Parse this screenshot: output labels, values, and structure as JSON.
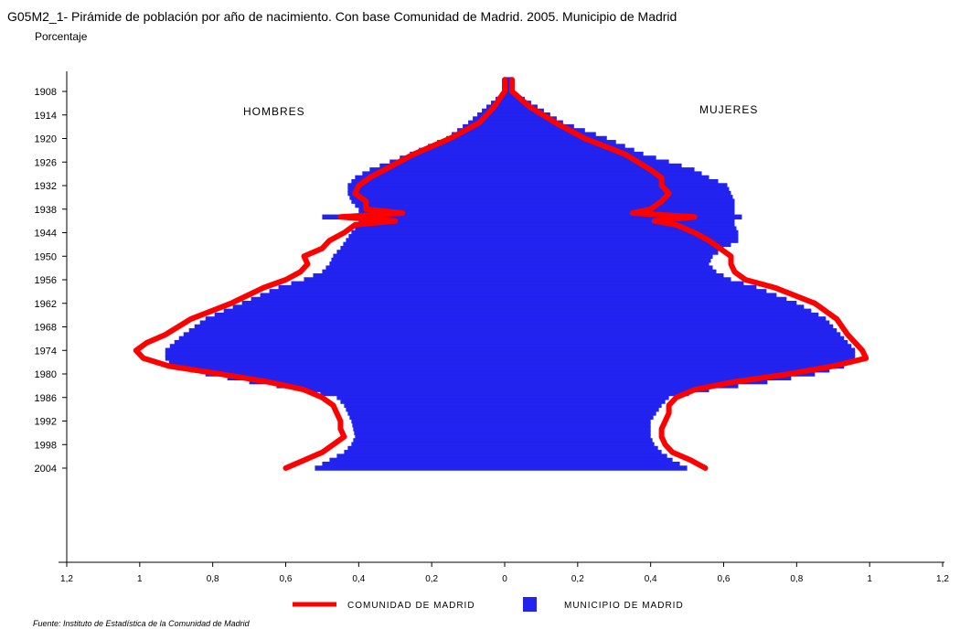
{
  "title": "G05M2_1- Pirámide de población por año de nacimiento. Con base Comunidad de Madrid.  2005. Municipio de Madrid",
  "subtitle": "Porcentaje",
  "source": "Fuente: Instituto de Estadística de la Comunidad de Madrid",
  "colors": {
    "municipio": "#2323f0",
    "comunidad": "#ff0000",
    "axis": "#000000"
  },
  "chart_data": {
    "type": "bar",
    "orientation": "horizontal",
    "subtype": "population-pyramid",
    "group_labels": {
      "left": "HOMBRES",
      "right": "MUJERES"
    },
    "ylim": [
      1905,
      2004
    ],
    "y_ticks": [
      1908,
      1914,
      1920,
      1926,
      1932,
      1938,
      1944,
      1950,
      1956,
      1962,
      1968,
      1974,
      1980,
      1986,
      1992,
      1998,
      2004
    ],
    "xlim": [
      -1.2,
      1.2
    ],
    "x_ticks": [
      -1.2,
      -1.0,
      -0.8,
      -0.6,
      -0.4,
      -0.2,
      0,
      0.2,
      0.4,
      0.6,
      0.8,
      1.0,
      1.2
    ],
    "x_tick_labels": [
      "1,2",
      "1",
      "0,8",
      "0,6",
      "0,4",
      "0,2",
      "0",
      "0,2",
      "0,4",
      "0,6",
      "0,8",
      "1",
      "1,2"
    ],
    "legend": {
      "position": "bottom",
      "entries": [
        "COMUNIDAD DE MADRID",
        "MUNICIPIO DE MADRID"
      ]
    },
    "grid": false,
    "series": [
      {
        "name": "MUNICIPIO DE MADRID",
        "kind": "bar",
        "hombres": {
          "years": [
            1905,
            1908,
            1912,
            1916,
            1918,
            1920,
            1924,
            1928,
            1930,
            1932,
            1934,
            1936,
            1938,
            1939,
            1940,
            1941,
            1942,
            1944,
            1948,
            1950,
            1952,
            1954,
            1956,
            1958,
            1962,
            1966,
            1970,
            1974,
            1976,
            1977,
            1978,
            1980,
            1982,
            1984,
            1986,
            1988,
            1992,
            1996,
            1998,
            2000,
            2002,
            2004
          ],
          "values": [
            0.0,
            0.0,
            0.05,
            0.1,
            0.13,
            0.16,
            0.26,
            0.37,
            0.41,
            0.43,
            0.43,
            0.42,
            0.4,
            0.4,
            0.5,
            0.4,
            0.4,
            0.42,
            0.45,
            0.47,
            0.48,
            0.5,
            0.55,
            0.62,
            0.72,
            0.82,
            0.88,
            0.93,
            0.93,
            0.92,
            0.9,
            0.82,
            0.7,
            0.55,
            0.46,
            0.44,
            0.42,
            0.41,
            0.42,
            0.44,
            0.48,
            0.52
          ]
        },
        "mujeres": {
          "years": [
            1905,
            1908,
            1912,
            1916,
            1918,
            1920,
            1924,
            1926,
            1928,
            1930,
            1932,
            1934,
            1936,
            1938,
            1939,
            1940,
            1941,
            1942,
            1944,
            1946,
            1948,
            1950,
            1952,
            1954,
            1956,
            1958,
            1962,
            1966,
            1970,
            1974,
            1976,
            1977,
            1978,
            1980,
            1982,
            1984,
            1986,
            1988,
            1992,
            1996,
            1998,
            2000,
            2002,
            2004
          ],
          "values": [
            0.02,
            0.02,
            0.09,
            0.16,
            0.22,
            0.28,
            0.38,
            0.45,
            0.52,
            0.56,
            0.61,
            0.62,
            0.63,
            0.63,
            0.63,
            0.65,
            0.63,
            0.63,
            0.64,
            0.64,
            0.6,
            0.57,
            0.56,
            0.58,
            0.62,
            0.69,
            0.8,
            0.88,
            0.92,
            0.96,
            0.96,
            0.95,
            0.93,
            0.85,
            0.72,
            0.56,
            0.45,
            0.43,
            0.4,
            0.4,
            0.41,
            0.43,
            0.46,
            0.5
          ]
        }
      },
      {
        "name": "COMUNIDAD DE MADRID",
        "kind": "line",
        "hombres": {
          "years": [
            1905,
            1908,
            1912,
            1916,
            1920,
            1924,
            1928,
            1930,
            1932,
            1934,
            1936,
            1938,
            1939,
            1940,
            1941,
            1942,
            1944,
            1946,
            1948,
            1950,
            1952,
            1954,
            1956,
            1958,
            1962,
            1966,
            1970,
            1972,
            1974,
            1976,
            1978,
            1980,
            1982,
            1984,
            1986,
            1988,
            1990,
            1992,
            1994,
            1996,
            1998,
            2000,
            2002,
            2004
          ],
          "values": [
            0.0,
            0.0,
            0.03,
            0.07,
            0.15,
            0.25,
            0.33,
            0.37,
            0.4,
            0.41,
            0.38,
            0.38,
            0.28,
            0.45,
            0.3,
            0.41,
            0.44,
            0.48,
            0.5,
            0.55,
            0.54,
            0.56,
            0.6,
            0.66,
            0.75,
            0.86,
            0.93,
            0.98,
            1.01,
            0.99,
            0.92,
            0.78,
            0.65,
            0.55,
            0.5,
            0.47,
            0.46,
            0.45,
            0.45,
            0.44,
            0.47,
            0.5,
            0.55,
            0.6
          ]
        },
        "mujeres": {
          "years": [
            1905,
            1908,
            1912,
            1916,
            1920,
            1924,
            1928,
            1930,
            1932,
            1934,
            1936,
            1938,
            1939,
            1940,
            1941,
            1942,
            1944,
            1946,
            1948,
            1950,
            1952,
            1954,
            1956,
            1958,
            1962,
            1966,
            1970,
            1972,
            1974,
            1976,
            1978,
            1980,
            1982,
            1984,
            1986,
            1988,
            1990,
            1992,
            1994,
            1996,
            1998,
            2000,
            2002,
            2004
          ],
          "values": [
            0.02,
            0.02,
            0.07,
            0.14,
            0.22,
            0.33,
            0.4,
            0.43,
            0.43,
            0.45,
            0.43,
            0.4,
            0.35,
            0.52,
            0.41,
            0.47,
            0.52,
            0.56,
            0.59,
            0.62,
            0.62,
            0.63,
            0.66,
            0.74,
            0.85,
            0.91,
            0.94,
            0.96,
            0.98,
            0.99,
            0.9,
            0.78,
            0.63,
            0.52,
            0.47,
            0.45,
            0.45,
            0.44,
            0.43,
            0.43,
            0.44,
            0.46,
            0.51,
            0.55
          ]
        }
      }
    ]
  }
}
